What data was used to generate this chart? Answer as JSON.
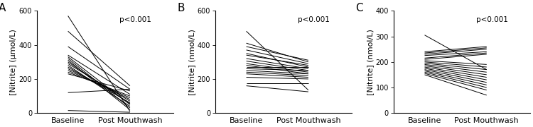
{
  "panel_A": {
    "label": "A",
    "ylabel": "[Nitrite] (μmol/L)",
    "ylim": [
      0,
      600
    ],
    "yticks": [
      0,
      200,
      400,
      600
    ],
    "pvalue": "p<0.001",
    "baseline": [
      570,
      480,
      390,
      340,
      330,
      320,
      310,
      300,
      290,
      280,
      270,
      260,
      250,
      240,
      230,
      120,
      15
    ],
    "postmw": [
      10,
      160,
      140,
      110,
      50,
      30,
      20,
      55,
      70,
      40,
      60,
      80,
      90,
      100,
      130,
      140,
      5
    ]
  },
  "panel_B": {
    "label": "B",
    "ylabel": "[Nitrite] (nmol/L)",
    "ylim": [
      0,
      600
    ],
    "yticks": [
      0,
      200,
      400,
      600
    ],
    "pvalue": "p<0.001",
    "baseline": [
      480,
      410,
      390,
      370,
      350,
      340,
      320,
      305,
      290,
      280,
      270,
      260,
      250,
      240,
      230,
      210,
      175,
      160
    ],
    "postmw": [
      135,
      300,
      310,
      290,
      270,
      280,
      260,
      250,
      240,
      230,
      270,
      250,
      230,
      220,
      210,
      200,
      175,
      125
    ]
  },
  "panel_C": {
    "label": "C",
    "ylabel": "[Nitrite] (nmol/L)",
    "ylim": [
      0,
      400
    ],
    "yticks": [
      0,
      100,
      200,
      300,
      400
    ],
    "pvalue": "p<0.001",
    "baseline": [
      305,
      240,
      235,
      230,
      225,
      215,
      210,
      205,
      200,
      195,
      190,
      185,
      180,
      175,
      170,
      165,
      160,
      155,
      150
    ],
    "postmw": [
      170,
      260,
      255,
      250,
      240,
      235,
      230,
      190,
      180,
      170,
      160,
      150,
      140,
      130,
      120,
      110,
      100,
      90,
      70
    ]
  },
  "line_color": "#000000",
  "line_width": 0.7,
  "xlabel_baseline": "Baseline",
  "xlabel_postmw": "Post Mouthwash",
  "background_color": "#ffffff",
  "label_fontsize": 8,
  "tick_fontsize": 7,
  "pval_fontsize": 7.5,
  "panel_label_fontsize": 11
}
